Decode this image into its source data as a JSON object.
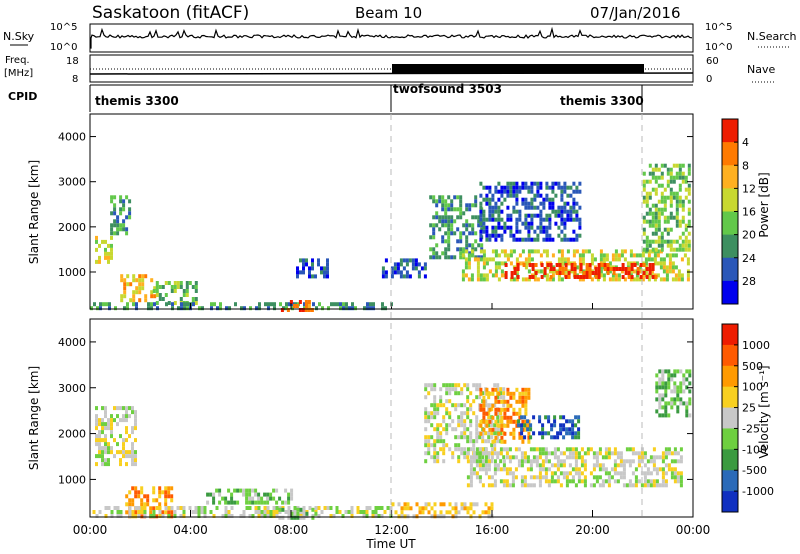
{
  "header": {
    "station": "Saskatoon (fitACF)",
    "beam": "Beam 10",
    "date": "07/Jan/2016"
  },
  "top_panels": {
    "nsky_label": "N.Sky",
    "nsky_ticks": [
      "10^5",
      "10^0"
    ],
    "nsearch_label": "N.Search",
    "nsearch_ticks": [
      "10^5",
      "10^0"
    ],
    "freq_label_1": "Freq.",
    "freq_label_2": "[MHz]",
    "freq_ticks": [
      "18",
      "8"
    ],
    "nave_label": "Nave",
    "nave_ticks": [
      "60",
      "0"
    ],
    "cpid_label": "CPID",
    "cpid_segments": [
      {
        "name": "themis 3300",
        "start_hour": 0,
        "end_hour": 12
      },
      {
        "name": "twofsound 3503",
        "start_hour": 12,
        "end_hour": 22
      },
      {
        "name": "themis 3300",
        "start_hour": 22,
        "end_hour": 24
      }
    ]
  },
  "chart_data": [
    {
      "type": "heatmap",
      "panel": "power",
      "ylabel": "Slant Range [km]",
      "ylim": [
        180,
        4500
      ],
      "yticks": [
        "1000",
        "2000",
        "3000",
        "4000"
      ],
      "xlim": [
        0,
        24
      ],
      "colorbar_label": "Power [dB]",
      "colorbar_ticks": [
        "4",
        "8",
        "12",
        "16",
        "20",
        "24",
        "28"
      ],
      "colors": [
        "#0000ee",
        "#2a57b8",
        "#3d8f60",
        "#62c84a",
        "#c8d830",
        "#ffb020",
        "#ff7a00",
        "#ee1c00"
      ],
      "regions": [
        {
          "t0": 0.2,
          "t1": 0.8,
          "r0": 1200,
          "r1": 1800,
          "level": 4
        },
        {
          "t0": 0.8,
          "t1": 1.6,
          "r0": 1900,
          "r1": 2700,
          "level": 2
        },
        {
          "t0": 1.2,
          "t1": 2.6,
          "r0": 350,
          "r1": 950,
          "level": 5
        },
        {
          "t0": 2.5,
          "t1": 4.2,
          "r0": 350,
          "r1": 800,
          "level": 3
        },
        {
          "t0": 0,
          "t1": 12,
          "r0": 180,
          "r1": 330,
          "level": 2
        },
        {
          "t0": 7.6,
          "t1": 8.8,
          "r0": 180,
          "r1": 380,
          "level": 6
        },
        {
          "t0": 8.2,
          "t1": 9.4,
          "r0": 900,
          "r1": 1300,
          "level": 1
        },
        {
          "t0": 11.5,
          "t1": 13.3,
          "r0": 900,
          "r1": 1300,
          "level": 1
        },
        {
          "t0": 13.5,
          "t1": 15.6,
          "r0": 1300,
          "r1": 2700,
          "level": 2
        },
        {
          "t0": 14.8,
          "t1": 23.8,
          "r0": 800,
          "r1": 1500,
          "level": 4
        },
        {
          "t0": 16.5,
          "t1": 22.5,
          "r0": 880,
          "r1": 1200,
          "level": 7
        },
        {
          "t0": 15.5,
          "t1": 19.5,
          "r0": 1700,
          "r1": 3000,
          "level": 1
        },
        {
          "t0": 22.0,
          "t1": 23.9,
          "r0": 1500,
          "r1": 3400,
          "level": 3
        }
      ]
    },
    {
      "type": "heatmap",
      "panel": "velocity",
      "ylabel": "Slant Range [km]",
      "ylim": [
        180,
        4500
      ],
      "yticks": [
        "1000",
        "2000",
        "3000",
        "4000"
      ],
      "xlim": [
        0,
        24
      ],
      "xticks": [
        "00:00",
        "04:00",
        "08:00",
        "12:00",
        "16:00",
        "20:00",
        "00:00"
      ],
      "xlabel": "Time UT",
      "colorbar_label": "Velocity [m s⁻¹]",
      "colorbar_ticks": [
        "1000",
        "500",
        "100",
        "25",
        "-25",
        "-100",
        "-500",
        "-1000"
      ],
      "colors": [
        "#1030c0",
        "#2a6ab8",
        "#3a9a40",
        "#6ed040",
        "#c8c8c8",
        "#f8d020",
        "#ff9a00",
        "#ff5a00",
        "#ee1c00"
      ],
      "regions": [
        {
          "t0": 0.2,
          "t1": 1.8,
          "r0": 1300,
          "r1": 2600,
          "level": 4
        },
        {
          "t0": 1.4,
          "t1": 3.3,
          "r0": 200,
          "r1": 850,
          "level": 6
        },
        {
          "t0": 0.1,
          "t1": 12,
          "r0": 180,
          "r1": 420,
          "level": 4
        },
        {
          "t0": 4.5,
          "t1": 8.0,
          "r0": 500,
          "r1": 800,
          "level": 3
        },
        {
          "t0": 7.5,
          "t1": 9.0,
          "r0": 180,
          "r1": 380,
          "level": 3
        },
        {
          "t0": 12,
          "t1": 16,
          "r0": 180,
          "r1": 500,
          "level": 5
        },
        {
          "t0": 13.3,
          "t1": 16.5,
          "r0": 1400,
          "r1": 3100,
          "level": 4
        },
        {
          "t0": 15,
          "t1": 23.5,
          "r0": 900,
          "r1": 1700,
          "level": 4
        },
        {
          "t0": 15.5,
          "t1": 17.5,
          "r0": 1800,
          "r1": 3000,
          "level": 6
        },
        {
          "t0": 17,
          "t1": 19.5,
          "r0": 1900,
          "r1": 2400,
          "level": 1
        },
        {
          "t0": 22.5,
          "t1": 23.9,
          "r0": 2400,
          "r1": 3400,
          "level": 3
        }
      ]
    }
  ]
}
